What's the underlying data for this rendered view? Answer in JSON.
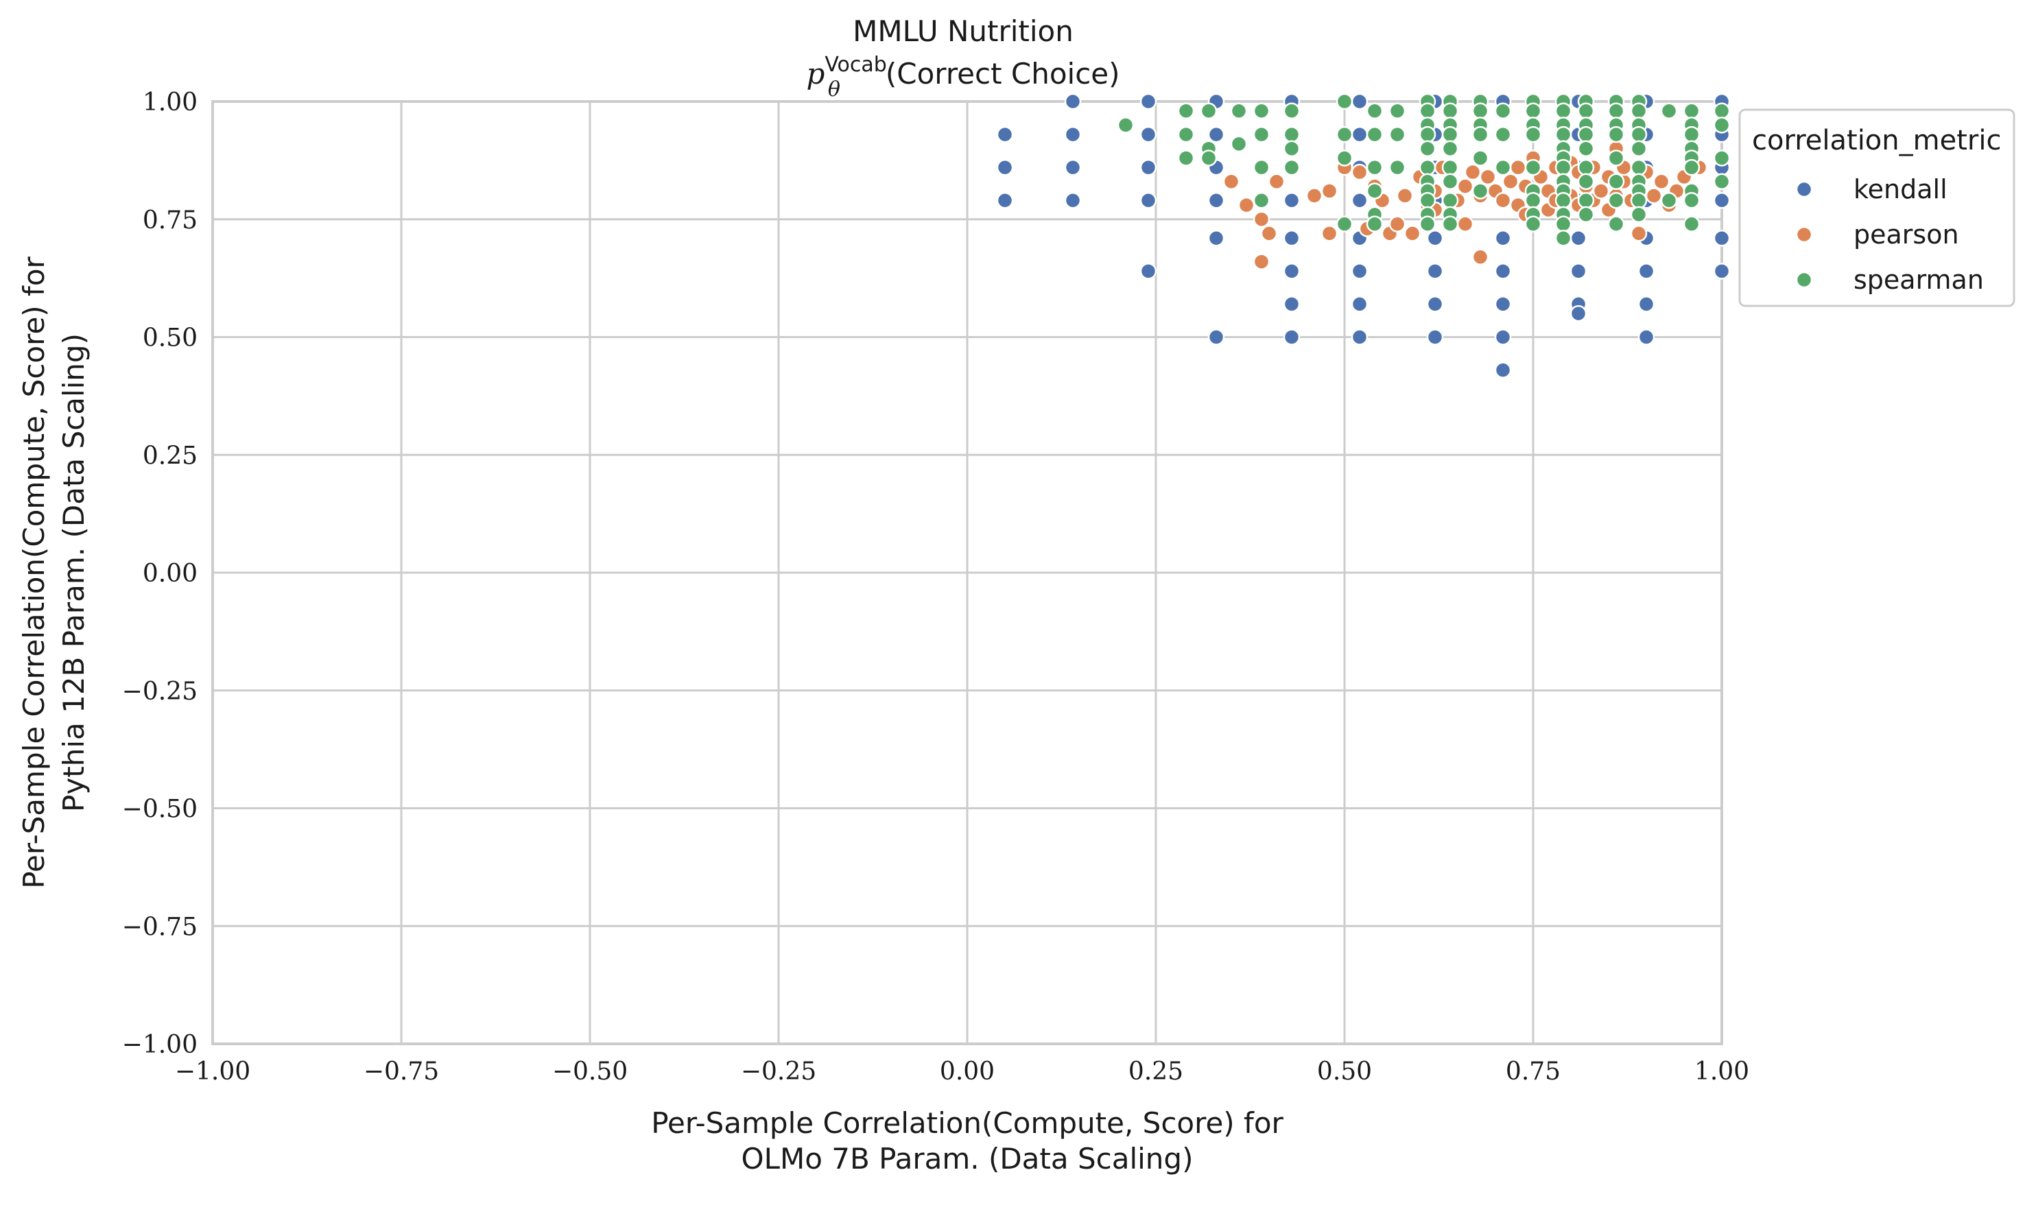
{
  "chart_data": {
    "type": "scatter",
    "title": "MMLU Nutrition",
    "subtitle": {
      "prefix": "p",
      "superscript": "Vocab",
      "subscript": "θ",
      "text": "(Correct Choice)"
    },
    "xlabel": [
      "Per-Sample Correlation(Compute, Score) for",
      "OLMo 7B Param. (Data Scaling)"
    ],
    "ylabel": [
      "Per-Sample Correlation(Compute, Score) for",
      "Pythia 12B Param. (Data Scaling)"
    ],
    "xlim": [
      -1.0,
      1.0
    ],
    "ylim": [
      -1.0,
      1.0
    ],
    "x_ticks": [
      "−1.00",
      "−0.75",
      "−0.50",
      "−0.25",
      "0.00",
      "0.25",
      "0.50",
      "0.75",
      "1.00"
    ],
    "y_ticks": [
      "1.00",
      "0.75",
      "0.50",
      "0.25",
      "0.00",
      "−0.25",
      "−0.50",
      "−0.75",
      "−1.00"
    ],
    "grid": true,
    "legend": {
      "title": "correlation_metric",
      "placement": "outside-right-top"
    },
    "series": [
      {
        "name": "kendall",
        "color": "#4c72b0",
        "points": [
          [
            0.05,
            0.93
          ],
          [
            0.05,
            0.86
          ],
          [
            0.05,
            0.79
          ],
          [
            0.14,
            1.0
          ],
          [
            0.14,
            0.93
          ],
          [
            0.14,
            0.86
          ],
          [
            0.14,
            0.79
          ],
          [
            0.24,
            1.0
          ],
          [
            0.24,
            0.93
          ],
          [
            0.24,
            0.86
          ],
          [
            0.24,
            0.79
          ],
          [
            0.24,
            0.64
          ],
          [
            0.33,
            1.0
          ],
          [
            0.33,
            0.93
          ],
          [
            0.33,
            0.86
          ],
          [
            0.33,
            0.79
          ],
          [
            0.33,
            0.71
          ],
          [
            0.33,
            0.5
          ],
          [
            0.43,
            1.0
          ],
          [
            0.43,
            0.93
          ],
          [
            0.43,
            0.86
          ],
          [
            0.43,
            0.79
          ],
          [
            0.43,
            0.71
          ],
          [
            0.43,
            0.64
          ],
          [
            0.43,
            0.57
          ],
          [
            0.43,
            0.5
          ],
          [
            0.52,
            1.0
          ],
          [
            0.52,
            0.93
          ],
          [
            0.52,
            0.86
          ],
          [
            0.52,
            0.79
          ],
          [
            0.52,
            0.71
          ],
          [
            0.52,
            0.64
          ],
          [
            0.52,
            0.57
          ],
          [
            0.52,
            0.5
          ],
          [
            0.62,
            1.0
          ],
          [
            0.62,
            0.93
          ],
          [
            0.62,
            0.86
          ],
          [
            0.62,
            0.79
          ],
          [
            0.62,
            0.71
          ],
          [
            0.62,
            0.64
          ],
          [
            0.62,
            0.57
          ],
          [
            0.62,
            0.5
          ],
          [
            0.71,
            1.0
          ],
          [
            0.71,
            0.93
          ],
          [
            0.71,
            0.86
          ],
          [
            0.71,
            0.79
          ],
          [
            0.71,
            0.71
          ],
          [
            0.71,
            0.64
          ],
          [
            0.71,
            0.57
          ],
          [
            0.71,
            0.5
          ],
          [
            0.71,
            0.43
          ],
          [
            0.81,
            1.0
          ],
          [
            0.81,
            0.93
          ],
          [
            0.81,
            0.86
          ],
          [
            0.81,
            0.79
          ],
          [
            0.81,
            0.71
          ],
          [
            0.81,
            0.64
          ],
          [
            0.81,
            0.57
          ],
          [
            0.81,
            0.55
          ],
          [
            0.9,
            1.0
          ],
          [
            0.9,
            0.93
          ],
          [
            0.9,
            0.86
          ],
          [
            0.9,
            0.79
          ],
          [
            0.9,
            0.71
          ],
          [
            0.9,
            0.64
          ],
          [
            0.9,
            0.57
          ],
          [
            0.9,
            0.5
          ],
          [
            1.0,
            1.0
          ],
          [
            1.0,
            0.93
          ],
          [
            1.0,
            0.86
          ],
          [
            1.0,
            0.79
          ],
          [
            1.0,
            0.71
          ],
          [
            1.0,
            0.64
          ]
        ]
      },
      {
        "name": "pearson",
        "color": "#dd8452",
        "points": [
          [
            0.35,
            0.83
          ],
          [
            0.37,
            0.78
          ],
          [
            0.39,
            0.75
          ],
          [
            0.39,
            0.66
          ],
          [
            0.4,
            0.72
          ],
          [
            0.41,
            0.83
          ],
          [
            0.46,
            0.8
          ],
          [
            0.48,
            0.81
          ],
          [
            0.48,
            0.72
          ],
          [
            0.5,
            0.86
          ],
          [
            0.52,
            0.85
          ],
          [
            0.53,
            0.73
          ],
          [
            0.54,
            0.82
          ],
          [
            0.55,
            0.79
          ],
          [
            0.56,
            0.72
          ],
          [
            0.57,
            0.74
          ],
          [
            0.58,
            0.8
          ],
          [
            0.59,
            0.72
          ],
          [
            0.6,
            0.84
          ],
          [
            0.61,
            0.78
          ],
          [
            0.62,
            0.81
          ],
          [
            0.63,
            0.86
          ],
          [
            0.64,
            0.83
          ],
          [
            0.65,
            0.79
          ],
          [
            0.66,
            0.82
          ],
          [
            0.67,
            0.85
          ],
          [
            0.68,
            0.67
          ],
          [
            0.68,
            0.8
          ],
          [
            0.69,
            0.84
          ],
          [
            0.7,
            0.81
          ],
          [
            0.71,
            0.79
          ],
          [
            0.72,
            0.83
          ],
          [
            0.73,
            0.86
          ],
          [
            0.73,
            0.78
          ],
          [
            0.74,
            0.82
          ],
          [
            0.75,
            0.88
          ],
          [
            0.75,
            0.8
          ],
          [
            0.76,
            0.84
          ],
          [
            0.77,
            0.77
          ],
          [
            0.77,
            0.81
          ],
          [
            0.78,
            0.86
          ],
          [
            0.78,
            0.79
          ],
          [
            0.79,
            0.83
          ],
          [
            0.8,
            0.8
          ],
          [
            0.8,
            0.87
          ],
          [
            0.81,
            0.78
          ],
          [
            0.81,
            0.85
          ],
          [
            0.82,
            0.82
          ],
          [
            0.83,
            0.79
          ],
          [
            0.83,
            0.86
          ],
          [
            0.84,
            0.81
          ],
          [
            0.85,
            0.84
          ],
          [
            0.85,
            0.77
          ],
          [
            0.86,
            0.8
          ],
          [
            0.87,
            0.83
          ],
          [
            0.87,
            0.86
          ],
          [
            0.88,
            0.79
          ],
          [
            0.89,
            0.82
          ],
          [
            0.89,
            0.72
          ],
          [
            0.9,
            0.85
          ],
          [
            0.91,
            0.8
          ],
          [
            0.92,
            0.83
          ],
          [
            0.93,
            0.78
          ],
          [
            0.94,
            0.81
          ],
          [
            0.95,
            0.84
          ],
          [
            0.96,
            0.8
          ],
          [
            0.97,
            0.86
          ],
          [
            0.74,
            0.76
          ],
          [
            0.79,
            0.9
          ],
          [
            0.86,
            0.9
          ],
          [
            0.62,
            0.77
          ],
          [
            0.66,
            0.74
          ]
        ]
      },
      {
        "name": "spearman",
        "color": "#55a868",
        "points": [
          [
            0.21,
            0.95
          ],
          [
            0.29,
            0.98
          ],
          [
            0.29,
            0.93
          ],
          [
            0.29,
            0.88
          ],
          [
            0.32,
            0.98
          ],
          [
            0.32,
            0.9
          ],
          [
            0.32,
            0.88
          ],
          [
            0.36,
            0.98
          ],
          [
            0.36,
            0.91
          ],
          [
            0.39,
            0.98
          ],
          [
            0.39,
            0.93
          ],
          [
            0.39,
            0.86
          ],
          [
            0.39,
            0.79
          ],
          [
            0.43,
            0.98
          ],
          [
            0.43,
            0.93
          ],
          [
            0.43,
            0.9
          ],
          [
            0.43,
            0.86
          ],
          [
            0.5,
            1.0
          ],
          [
            0.5,
            0.93
          ],
          [
            0.5,
            0.88
          ],
          [
            0.5,
            0.74
          ],
          [
            0.54,
            0.98
          ],
          [
            0.54,
            0.93
          ],
          [
            0.54,
            0.86
          ],
          [
            0.54,
            0.81
          ],
          [
            0.54,
            0.76
          ],
          [
            0.54,
            0.74
          ],
          [
            0.57,
            0.98
          ],
          [
            0.57,
            0.93
          ],
          [
            0.57,
            0.86
          ],
          [
            0.61,
            1.0
          ],
          [
            0.61,
            0.98
          ],
          [
            0.61,
            0.95
          ],
          [
            0.61,
            0.93
          ],
          [
            0.61,
            0.9
          ],
          [
            0.61,
            0.86
          ],
          [
            0.61,
            0.83
          ],
          [
            0.61,
            0.81
          ],
          [
            0.61,
            0.79
          ],
          [
            0.61,
            0.76
          ],
          [
            0.61,
            0.74
          ],
          [
            0.64,
            1.0
          ],
          [
            0.64,
            0.98
          ],
          [
            0.64,
            0.95
          ],
          [
            0.64,
            0.93
          ],
          [
            0.64,
            0.9
          ],
          [
            0.64,
            0.86
          ],
          [
            0.64,
            0.83
          ],
          [
            0.64,
            0.79
          ],
          [
            0.64,
            0.76
          ],
          [
            0.64,
            0.74
          ],
          [
            0.68,
            1.0
          ],
          [
            0.68,
            0.98
          ],
          [
            0.68,
            0.95
          ],
          [
            0.68,
            0.93
          ],
          [
            0.68,
            0.88
          ],
          [
            0.68,
            0.81
          ],
          [
            0.71,
            0.98
          ],
          [
            0.71,
            0.93
          ],
          [
            0.71,
            0.86
          ],
          [
            0.75,
            1.0
          ],
          [
            0.75,
            0.98
          ],
          [
            0.75,
            0.95
          ],
          [
            0.75,
            0.93
          ],
          [
            0.75,
            0.86
          ],
          [
            0.75,
            0.81
          ],
          [
            0.75,
            0.79
          ],
          [
            0.75,
            0.76
          ],
          [
            0.75,
            0.74
          ],
          [
            0.79,
            1.0
          ],
          [
            0.79,
            0.98
          ],
          [
            0.79,
            0.95
          ],
          [
            0.79,
            0.93
          ],
          [
            0.79,
            0.9
          ],
          [
            0.79,
            0.88
          ],
          [
            0.79,
            0.86
          ],
          [
            0.79,
            0.83
          ],
          [
            0.79,
            0.81
          ],
          [
            0.79,
            0.79
          ],
          [
            0.79,
            0.76
          ],
          [
            0.79,
            0.74
          ],
          [
            0.79,
            0.71
          ],
          [
            0.82,
            1.0
          ],
          [
            0.82,
            0.98
          ],
          [
            0.82,
            0.95
          ],
          [
            0.82,
            0.93
          ],
          [
            0.82,
            0.9
          ],
          [
            0.82,
            0.86
          ],
          [
            0.82,
            0.83
          ],
          [
            0.82,
            0.79
          ],
          [
            0.82,
            0.76
          ],
          [
            0.86,
            1.0
          ],
          [
            0.86,
            0.98
          ],
          [
            0.86,
            0.95
          ],
          [
            0.86,
            0.93
          ],
          [
            0.86,
            0.88
          ],
          [
            0.86,
            0.83
          ],
          [
            0.86,
            0.79
          ],
          [
            0.86,
            0.74
          ],
          [
            0.89,
            1.0
          ],
          [
            0.89,
            0.98
          ],
          [
            0.89,
            0.95
          ],
          [
            0.89,
            0.93
          ],
          [
            0.89,
            0.9
          ],
          [
            0.89,
            0.86
          ],
          [
            0.89,
            0.83
          ],
          [
            0.89,
            0.81
          ],
          [
            0.89,
            0.79
          ],
          [
            0.89,
            0.76
          ],
          [
            0.93,
            0.98
          ],
          [
            0.93,
            0.79
          ],
          [
            0.96,
            0.98
          ],
          [
            0.96,
            0.95
          ],
          [
            0.96,
            0.93
          ],
          [
            0.96,
            0.9
          ],
          [
            0.96,
            0.88
          ],
          [
            0.96,
            0.86
          ],
          [
            0.96,
            0.81
          ],
          [
            0.96,
            0.79
          ],
          [
            0.96,
            0.74
          ],
          [
            1.0,
            0.98
          ],
          [
            1.0,
            0.95
          ],
          [
            1.0,
            0.88
          ],
          [
            1.0,
            0.83
          ]
        ]
      }
    ]
  }
}
